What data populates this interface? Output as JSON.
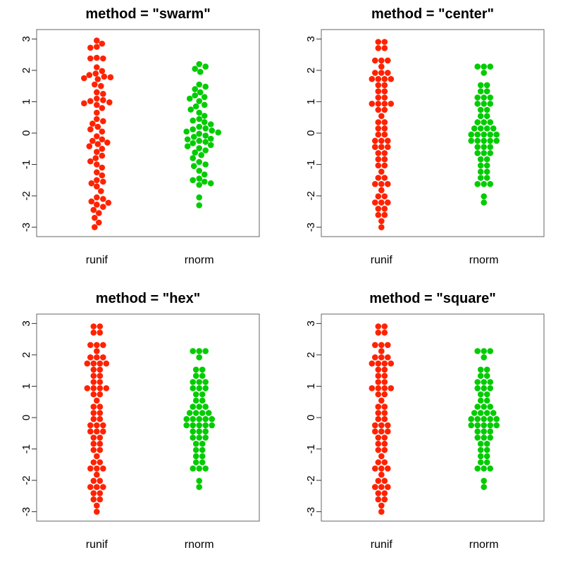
{
  "figure": {
    "colors": {
      "runif": "#ff2200",
      "rnorm": "#00cc00",
      "frame": "#666666"
    }
  },
  "chart_data": [
    {
      "type": "scatter",
      "title": "method = \"swarm\"",
      "categories": [
        "runif",
        "rnorm"
      ],
      "ylim": [
        -3.3,
        3.3
      ],
      "yticks": [
        "3",
        "2",
        "1",
        "0",
        "-1",
        "-2",
        "-3"
      ],
      "legend": "none",
      "grid": false,
      "series": [
        {
          "color": "#ff2200",
          "values": [
            2.95,
            2.85,
            2.75,
            2.72,
            2.4,
            2.38,
            2.38,
            2.1,
            1.98,
            1.9,
            1.85,
            1.8,
            1.78,
            1.75,
            1.72,
            1.55,
            1.5,
            1.3,
            1.25,
            1.1,
            1.05,
            1.02,
            0.98,
            0.95,
            0.9,
            0.8,
            0.65,
            0.45,
            0.38,
            0.3,
            0.2,
            0.12,
            0.05,
            -0.1,
            -0.2,
            -0.25,
            -0.3,
            -0.35,
            -0.42,
            -0.5,
            -0.6,
            -0.72,
            -0.8,
            -0.9,
            -1.0,
            -1.1,
            -1.25,
            -1.35,
            -1.5,
            -1.55,
            -1.6,
            -1.7,
            -1.85,
            -2.05,
            -2.1,
            -2.18,
            -2.22,
            -2.28,
            -2.35,
            -2.45,
            -2.55,
            -2.7,
            -2.85,
            -3.0
          ]
        },
        {
          "color": "#00cc00",
          "values": [
            2.2,
            2.12,
            2.05,
            1.95,
            1.55,
            1.48,
            1.4,
            1.3,
            1.2,
            1.15,
            1.1,
            1.02,
            0.9,
            0.85,
            0.75,
            0.65,
            0.55,
            0.45,
            0.4,
            0.35,
            0.28,
            0.2,
            0.15,
            0.12,
            0.08,
            0.05,
            0.02,
            -0.02,
            -0.08,
            -0.12,
            -0.18,
            -0.2,
            -0.25,
            -0.28,
            -0.32,
            -0.38,
            -0.42,
            -0.48,
            -0.55,
            -0.62,
            -0.7,
            -0.8,
            -0.92,
            -1.0,
            -1.05,
            -1.2,
            -1.32,
            -1.45,
            -1.5,
            -1.55,
            -1.6,
            -1.65,
            -2.05,
            -2.3
          ]
        }
      ]
    },
    {
      "type": "scatter",
      "title": "method = \"center\"",
      "categories": [
        "runif",
        "rnorm"
      ],
      "ylim": [
        -3.3,
        3.3
      ],
      "yticks": [
        "3",
        "2",
        "1",
        "0",
        "-1",
        "-2",
        "-3"
      ],
      "legend": "none",
      "grid": false,
      "series": [
        {
          "color": "#ff2200",
          "values": [
            2.95,
            2.85,
            2.75,
            2.72,
            2.4,
            2.38,
            2.38,
            2.1,
            1.98,
            1.9,
            1.85,
            1.8,
            1.78,
            1.75,
            1.72,
            1.55,
            1.5,
            1.3,
            1.25,
            1.1,
            1.05,
            1.02,
            0.98,
            0.95,
            0.9,
            0.8,
            0.65,
            0.45,
            0.38,
            0.3,
            0.2,
            0.12,
            0.05,
            -0.1,
            -0.2,
            -0.25,
            -0.3,
            -0.35,
            -0.42,
            -0.5,
            -0.6,
            -0.72,
            -0.8,
            -0.9,
            -1.0,
            -1.1,
            -1.25,
            -1.35,
            -1.5,
            -1.55,
            -1.6,
            -1.7,
            -1.85,
            -2.05,
            -2.1,
            -2.18,
            -2.22,
            -2.28,
            -2.35,
            -2.45,
            -2.55,
            -2.7,
            -2.85,
            -3.0
          ]
        },
        {
          "color": "#00cc00",
          "values": [
            2.2,
            2.12,
            2.05,
            1.95,
            1.55,
            1.48,
            1.4,
            1.3,
            1.2,
            1.15,
            1.1,
            1.02,
            0.9,
            0.85,
            0.75,
            0.65,
            0.55,
            0.45,
            0.4,
            0.35,
            0.28,
            0.2,
            0.15,
            0.12,
            0.08,
            0.05,
            0.02,
            -0.02,
            -0.08,
            -0.12,
            -0.18,
            -0.2,
            -0.25,
            -0.28,
            -0.32,
            -0.38,
            -0.42,
            -0.48,
            -0.55,
            -0.62,
            -0.7,
            -0.8,
            -0.92,
            -1.0,
            -1.05,
            -1.2,
            -1.32,
            -1.45,
            -1.5,
            -1.55,
            -1.6,
            -1.65,
            -2.05,
            -2.3
          ]
        }
      ]
    },
    {
      "type": "scatter",
      "title": "method = \"hex\"",
      "categories": [
        "runif",
        "rnorm"
      ],
      "ylim": [
        -3.3,
        3.3
      ],
      "yticks": [
        "3",
        "2",
        "1",
        "0",
        "-1",
        "-2",
        "-3"
      ],
      "legend": "none",
      "grid": false,
      "series": [
        {
          "color": "#ff2200",
          "values": [
            2.95,
            2.85,
            2.75,
            2.72,
            2.4,
            2.38,
            2.38,
            2.1,
            1.98,
            1.9,
            1.85,
            1.8,
            1.78,
            1.75,
            1.72,
            1.55,
            1.5,
            1.3,
            1.25,
            1.1,
            1.05,
            1.02,
            0.98,
            0.95,
            0.9,
            0.8,
            0.65,
            0.45,
            0.38,
            0.3,
            0.2,
            0.12,
            0.05,
            -0.1,
            -0.2,
            -0.25,
            -0.3,
            -0.35,
            -0.42,
            -0.5,
            -0.6,
            -0.72,
            -0.8,
            -0.9,
            -1.0,
            -1.1,
            -1.25,
            -1.35,
            -1.5,
            -1.55,
            -1.6,
            -1.7,
            -1.85,
            -2.05,
            -2.1,
            -2.18,
            -2.22,
            -2.28,
            -2.35,
            -2.45,
            -2.55,
            -2.7,
            -2.85,
            -3.0
          ]
        },
        {
          "color": "#00cc00",
          "values": [
            2.2,
            2.12,
            2.05,
            1.95,
            1.55,
            1.48,
            1.4,
            1.3,
            1.2,
            1.15,
            1.1,
            1.02,
            0.9,
            0.85,
            0.75,
            0.65,
            0.55,
            0.45,
            0.4,
            0.35,
            0.28,
            0.2,
            0.15,
            0.12,
            0.08,
            0.05,
            0.02,
            -0.02,
            -0.08,
            -0.12,
            -0.18,
            -0.2,
            -0.25,
            -0.28,
            -0.32,
            -0.38,
            -0.42,
            -0.48,
            -0.55,
            -0.62,
            -0.7,
            -0.8,
            -0.92,
            -1.0,
            -1.05,
            -1.2,
            -1.32,
            -1.45,
            -1.5,
            -1.55,
            -1.6,
            -1.65,
            -2.05,
            -2.3
          ]
        }
      ]
    },
    {
      "type": "scatter",
      "title": "method = \"square\"",
      "categories": [
        "runif",
        "rnorm"
      ],
      "ylim": [
        -3.3,
        3.3
      ],
      "yticks": [
        "3",
        "2",
        "1",
        "0",
        "-1",
        "-2",
        "-3"
      ],
      "legend": "none",
      "grid": false,
      "series": [
        {
          "color": "#ff2200",
          "values": [
            2.95,
            2.85,
            2.75,
            2.72,
            2.4,
            2.38,
            2.38,
            2.1,
            1.98,
            1.9,
            1.85,
            1.8,
            1.78,
            1.75,
            1.72,
            1.55,
            1.5,
            1.3,
            1.25,
            1.1,
            1.05,
            1.02,
            0.98,
            0.95,
            0.9,
            0.8,
            0.65,
            0.45,
            0.38,
            0.3,
            0.2,
            0.12,
            0.05,
            -0.1,
            -0.2,
            -0.25,
            -0.3,
            -0.35,
            -0.42,
            -0.5,
            -0.6,
            -0.72,
            -0.8,
            -0.9,
            -1.0,
            -1.1,
            -1.25,
            -1.35,
            -1.5,
            -1.55,
            -1.6,
            -1.7,
            -1.85,
            -2.05,
            -2.1,
            -2.18,
            -2.22,
            -2.28,
            -2.35,
            -2.45,
            -2.55,
            -2.7,
            -2.85,
            -3.0
          ]
        },
        {
          "color": "#00cc00",
          "values": [
            2.2,
            2.12,
            2.05,
            1.95,
            1.55,
            1.48,
            1.4,
            1.3,
            1.2,
            1.15,
            1.1,
            1.02,
            0.9,
            0.85,
            0.75,
            0.65,
            0.55,
            0.45,
            0.4,
            0.35,
            0.28,
            0.2,
            0.15,
            0.12,
            0.08,
            0.05,
            0.02,
            -0.02,
            -0.08,
            -0.12,
            -0.18,
            -0.2,
            -0.25,
            -0.28,
            -0.32,
            -0.38,
            -0.42,
            -0.48,
            -0.55,
            -0.62,
            -0.7,
            -0.8,
            -0.92,
            -1.0,
            -1.05,
            -1.2,
            -1.32,
            -1.45,
            -1.5,
            -1.55,
            -1.6,
            -1.65,
            -2.05,
            -2.3
          ]
        }
      ]
    }
  ]
}
